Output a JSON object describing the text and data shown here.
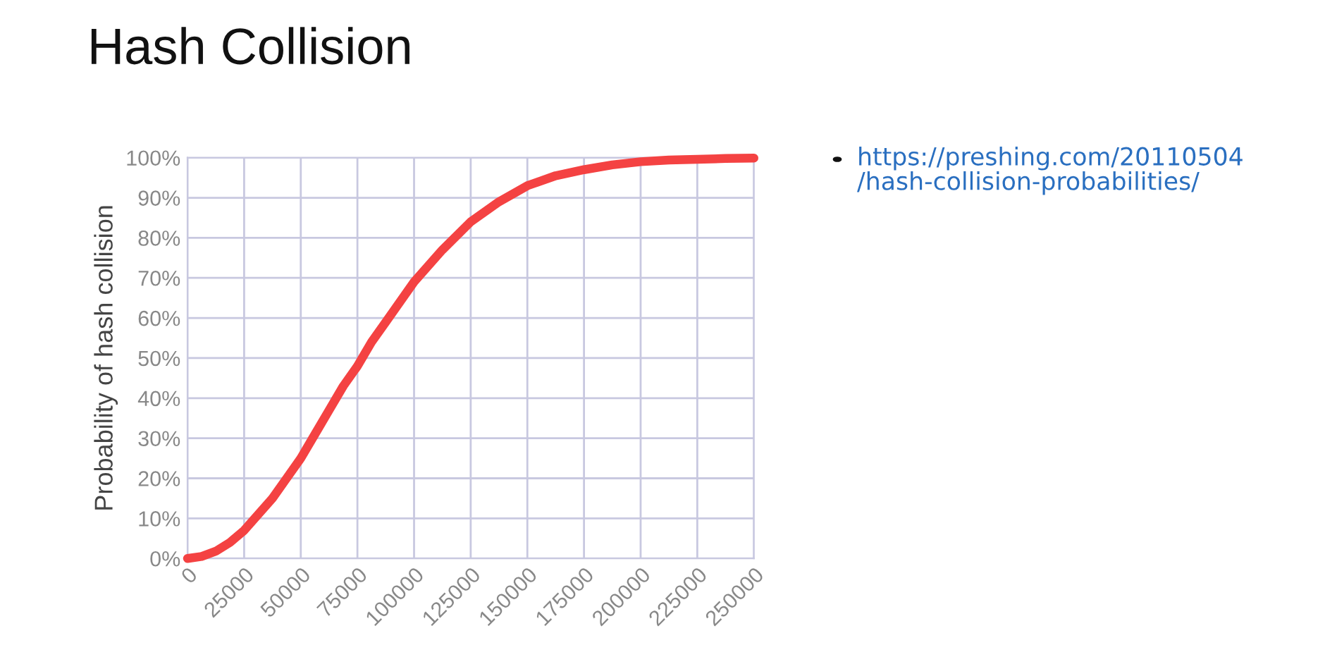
{
  "chart_data": {
    "type": "line",
    "title": "Hash Collision",
    "ylabel": "Probability of hash collision",
    "annotations": [
      "https://preshing.com/20110504\n/hash-collision-probabilities/"
    ],
    "x": [
      0,
      6250,
      12500,
      18750,
      25000,
      31250,
      37500,
      43750,
      50000,
      56250,
      62500,
      68750,
      75000,
      81250,
      87500,
      93750,
      100000,
      112500,
      125000,
      137500,
      150000,
      162500,
      175000,
      187500,
      200000,
      212500,
      225000,
      237500,
      250000
    ],
    "series": [
      {
        "color": "#f44242",
        "values": [
          0,
          0.5,
          1.8,
          4,
          7,
          11,
          15,
          20,
          25,
          31,
          37,
          43,
          48,
          54,
          59,
          64,
          69,
          77,
          84,
          89,
          93,
          95.5,
          97,
          98.2,
          99,
          99.4,
          99.6,
          99.8,
          99.9
        ]
      }
    ],
    "xlim": [
      0,
      250000
    ],
    "xticks": [
      0,
      25000,
      50000,
      75000,
      100000,
      125000,
      150000,
      175000,
      200000,
      225000,
      250000
    ],
    "ylim": [
      0,
      100
    ],
    "yticks": [
      {
        "value": 0,
        "label": "0%"
      },
      {
        "value": 10,
        "label": "10%"
      },
      {
        "value": 20,
        "label": "20%"
      },
      {
        "value": 30,
        "label": "30%"
      },
      {
        "value": 40,
        "label": "40%"
      },
      {
        "value": 50,
        "label": "50%"
      },
      {
        "value": 60,
        "label": "60%"
      },
      {
        "value": 70,
        "label": "70%"
      },
      {
        "value": 80,
        "label": "80%"
      },
      {
        "value": 90,
        "label": "90%"
      },
      {
        "value": 100,
        "label": "100%"
      }
    ],
    "grid": true,
    "legend": false,
    "marker": "none",
    "line_style": "solid"
  }
}
